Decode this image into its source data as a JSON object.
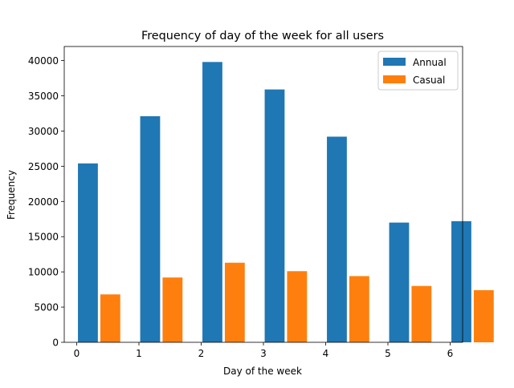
{
  "chart_data": {
    "type": "bar",
    "title": "Frequency of day of the week for all users",
    "xlabel": "Day of the week",
    "ylabel": "Frequency",
    "xlim": [
      -0.2,
      6.2
    ],
    "ylim": [
      0,
      42000
    ],
    "xticks": [
      0,
      1,
      2,
      3,
      4,
      5,
      6
    ],
    "yticks": [
      0,
      5000,
      10000,
      15000,
      20000,
      25000,
      30000,
      35000,
      40000
    ],
    "grid": false,
    "legend_position": "top-right",
    "series": [
      {
        "name": "Annual",
        "color": "#1f77b4",
        "x": [
          0,
          1,
          2,
          3,
          4,
          5,
          6
        ],
        "values": [
          25400,
          32100,
          39800,
          35900,
          29200,
          17000,
          17200
        ]
      },
      {
        "name": "Casual",
        "color": "#ff7f0e",
        "x": [
          0,
          1,
          2,
          3,
          4,
          5,
          6
        ],
        "values": [
          6800,
          9200,
          11300,
          10100,
          9400,
          8000,
          7400
        ]
      }
    ]
  }
}
